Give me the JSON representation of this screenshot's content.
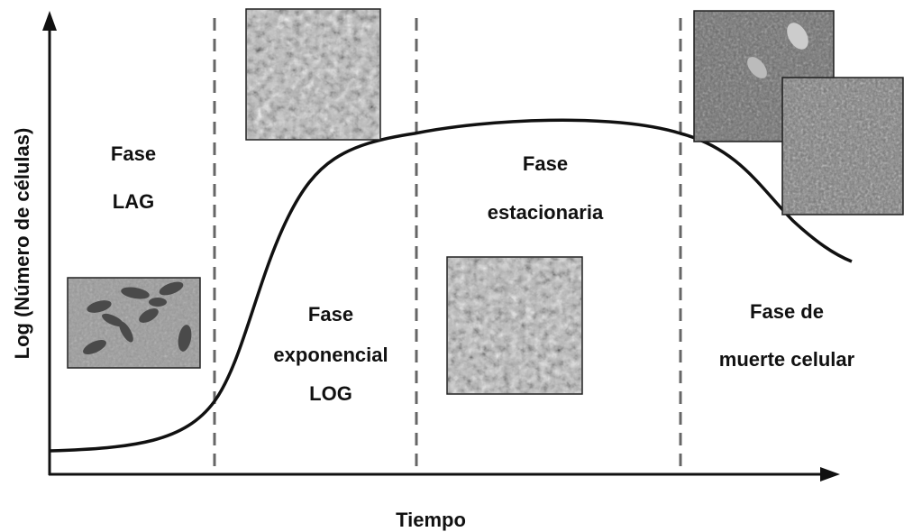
{
  "axes": {
    "y_label": "Log (Número de células)",
    "x_label": "Tiempo"
  },
  "phases": [
    {
      "lines": [
        "Fase",
        "LAG"
      ]
    },
    {
      "lines": [
        "Fase",
        "exponencial",
        "LOG"
      ]
    },
    {
      "lines": [
        "Fase",
        "estacionaria"
      ]
    },
    {
      "lines": [
        "Fase de",
        "muerte celular"
      ]
    }
  ]
}
